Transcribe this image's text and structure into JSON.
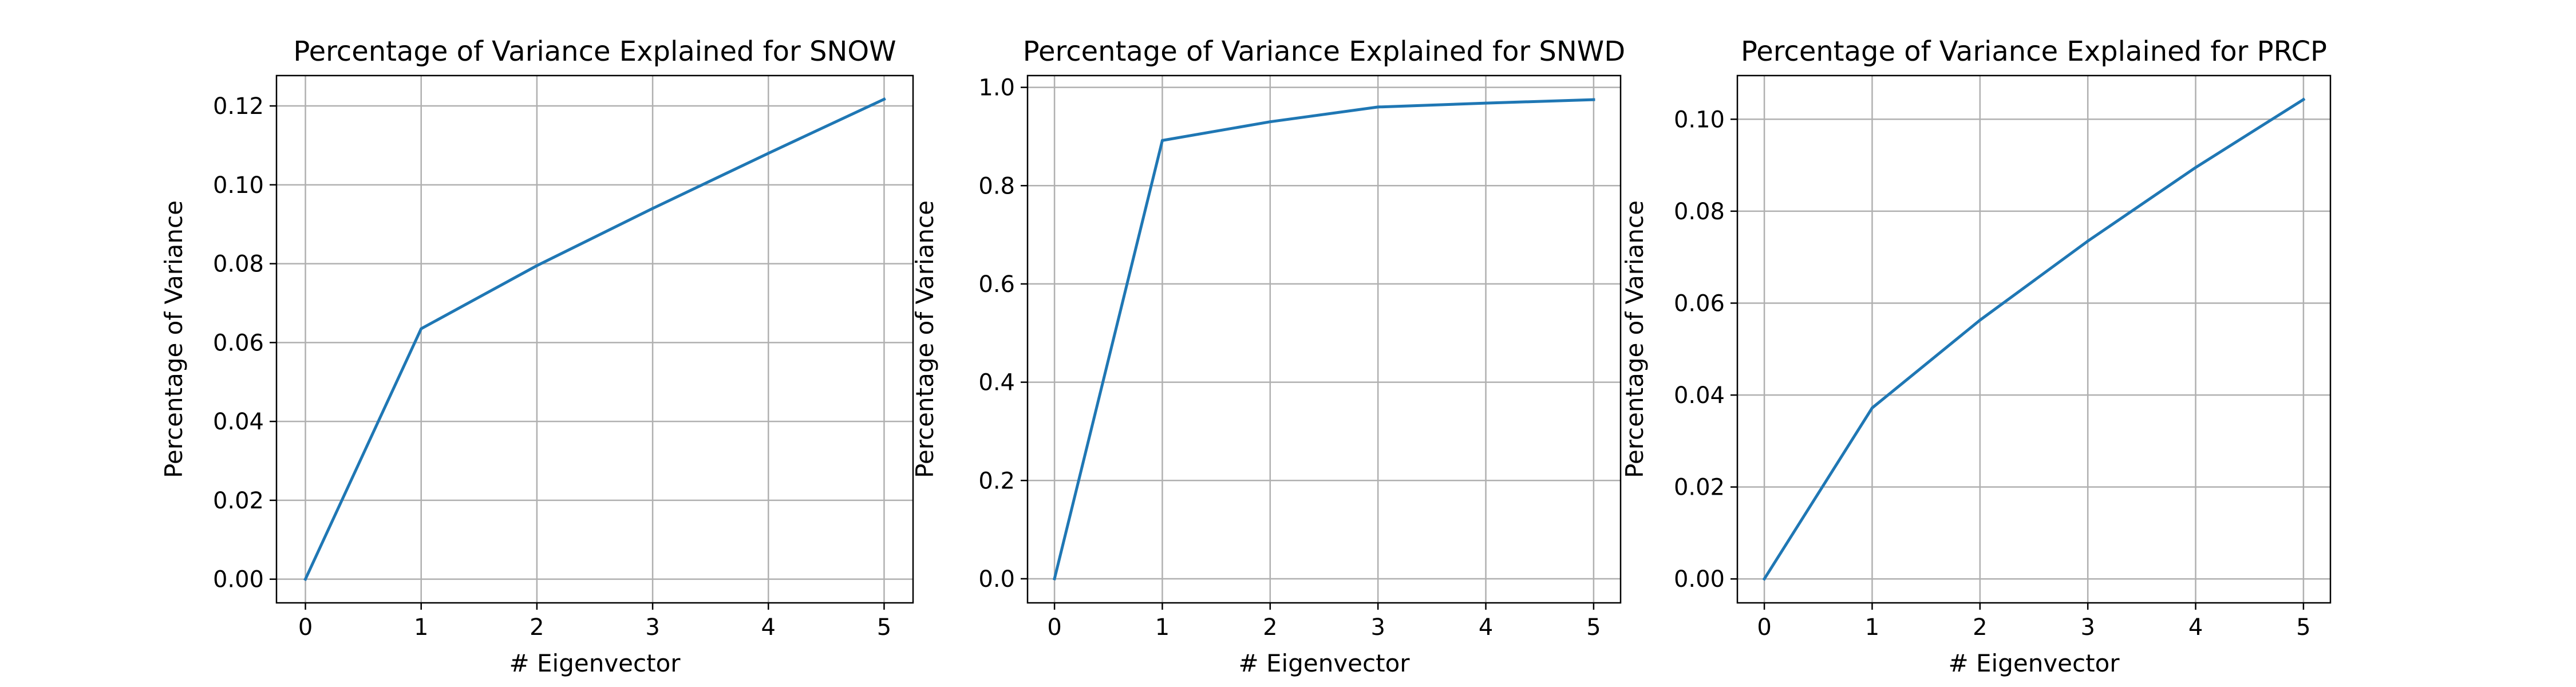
{
  "chart_data": [
    {
      "type": "line",
      "title": "Percentage of Variance Explained for SNOW",
      "xlabel": "# Eigenvector",
      "ylabel": "Percentage of Variance",
      "x": [
        0,
        1,
        2,
        3,
        4,
        5
      ],
      "series": [
        {
          "values": [
            0.0,
            0.0635,
            0.0795,
            0.094,
            0.108,
            0.1217
          ]
        }
      ],
      "xlim": [
        -0.25,
        5.25
      ],
      "ylim": [
        -0.006,
        0.1277
      ],
      "xticks": [
        0,
        1,
        2,
        3,
        4,
        5
      ],
      "xtick_labels": [
        "0",
        "1",
        "2",
        "3",
        "4",
        "5"
      ],
      "yticks": [
        0.0,
        0.02,
        0.04,
        0.06,
        0.08,
        0.1,
        0.12
      ],
      "ytick_labels": [
        "0.00",
        "0.02",
        "0.04",
        "0.06",
        "0.08",
        "0.10",
        "0.12"
      ],
      "grid": true,
      "color": "#1f77b4"
    },
    {
      "type": "line",
      "title": "Percentage of Variance Explained for SNWD",
      "xlabel": "# Eigenvector",
      "ylabel": "Percentage of Variance",
      "x": [
        0,
        1,
        2,
        3,
        4,
        5
      ],
      "series": [
        {
          "values": [
            0.0,
            0.892,
            0.93,
            0.96,
            0.968,
            0.975
          ]
        }
      ],
      "xlim": [
        -0.25,
        5.25
      ],
      "ylim": [
        -0.049,
        1.024
      ],
      "xticks": [
        0,
        1,
        2,
        3,
        4,
        5
      ],
      "xtick_labels": [
        "0",
        "1",
        "2",
        "3",
        "4",
        "5"
      ],
      "yticks": [
        0.0,
        0.2,
        0.4,
        0.6,
        0.8,
        1.0
      ],
      "ytick_labels": [
        "0.0",
        "0.2",
        "0.4",
        "0.6",
        "0.8",
        "1.0"
      ],
      "grid": true,
      "color": "#1f77b4"
    },
    {
      "type": "line",
      "title": "Percentage of Variance Explained for PRCP",
      "xlabel": "# Eigenvector",
      "ylabel": "Percentage of Variance",
      "x": [
        0,
        1,
        2,
        3,
        4,
        5
      ],
      "series": [
        {
          "values": [
            0.0,
            0.0372,
            0.0563,
            0.0735,
            0.0895,
            0.1043
          ]
        }
      ],
      "xlim": [
        -0.25,
        5.25
      ],
      "ylim": [
        -0.0052,
        0.1095
      ],
      "xticks": [
        0,
        1,
        2,
        3,
        4,
        5
      ],
      "xtick_labels": [
        "0",
        "1",
        "2",
        "3",
        "4",
        "5"
      ],
      "yticks": [
        0.0,
        0.02,
        0.04,
        0.06,
        0.08,
        0.1
      ],
      "ytick_labels": [
        "0.00",
        "0.02",
        "0.04",
        "0.06",
        "0.08",
        "0.10"
      ],
      "grid": true,
      "color": "#1f77b4"
    }
  ]
}
